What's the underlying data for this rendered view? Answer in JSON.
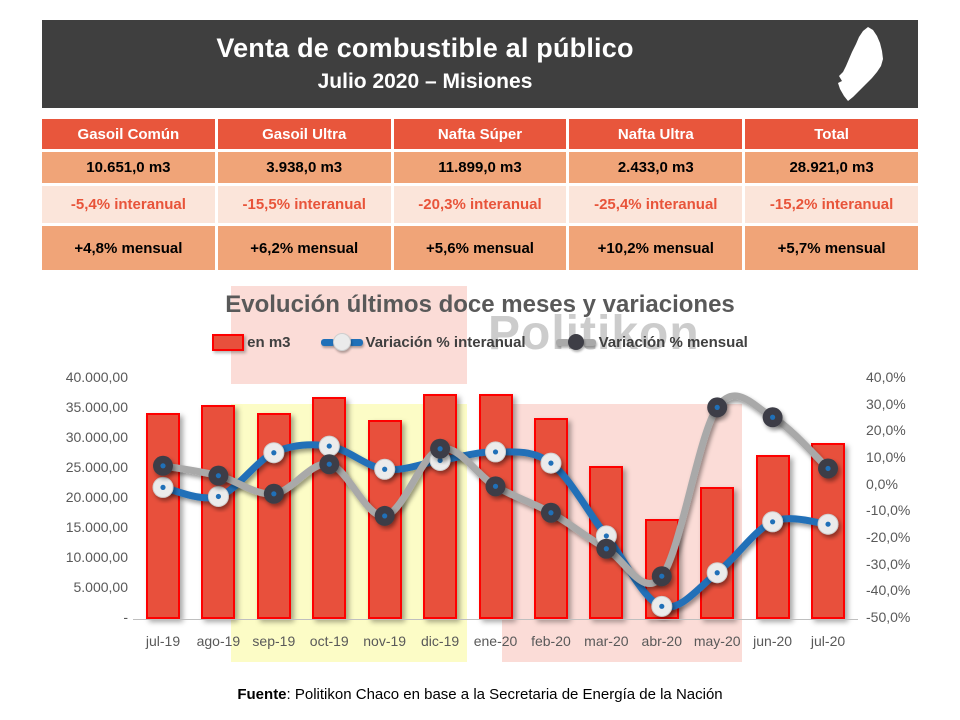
{
  "header": {
    "title": "Venta de combustible al público",
    "subtitle": "Julio 2020 – Misiones"
  },
  "table": {
    "columns": [
      "Gasoil Común",
      "Gasoil Ultra",
      "Nafta Súper",
      "Nafta Ultra",
      "Total"
    ],
    "volumes": [
      "10.651,0 m3",
      "3.938,0 m3",
      "11.899,0 m3",
      "2.433,0 m3",
      "28.921,0 m3"
    ],
    "interanual": [
      "-5,4% interanual",
      "-15,5% interanual",
      "-20,3% interanual",
      "-25,4% interanual",
      "-15,2% interanual"
    ],
    "mensual": [
      "+4,8% mensual",
      "+6,2% mensual",
      "+5,6% mensual",
      "+10,2% mensual",
      "+5,7% mensual"
    ]
  },
  "chart_section": {
    "title": "Evolución últimos doce meses y variaciones",
    "watermark": "Politikon",
    "legend": {
      "bars": "en m3",
      "interanual": "Variación % interanual",
      "mensual": "Variación % mensual"
    }
  },
  "chart_data": {
    "type": "bar",
    "combo": "bars (left axis, m3) + two smoothed marker lines (right axis, %)",
    "categories": [
      "jul-19",
      "ago-19",
      "sep-19",
      "oct-19",
      "nov-19",
      "dic-19",
      "ene-20",
      "feb-20",
      "mar-20",
      "abr-20",
      "may-20",
      "jun-20",
      "jul-20"
    ],
    "series": [
      {
        "name": "en m3",
        "type": "bar",
        "axis": "left",
        "values": [
          34000,
          35300,
          34000,
          36700,
          32800,
          37200,
          37200,
          33100,
          25100,
          16400,
          21600,
          27000,
          28921
        ]
      },
      {
        "name": "Variación % interanual",
        "type": "line",
        "axis": "right",
        "values": [
          -1.4,
          -4.8,
          11.6,
          14.1,
          5.4,
          8.7,
          11.9,
          7.7,
          -19.6,
          -46.0,
          -33.4,
          -14.3,
          -15.2
        ]
      },
      {
        "name": "Variación % mensual",
        "type": "line",
        "axis": "right",
        "values": [
          6.7,
          3.0,
          -3.8,
          7.3,
          -12.1,
          13.1,
          -1.0,
          -10.9,
          -24.4,
          -34.7,
          28.6,
          24.9,
          5.7
        ]
      }
    ],
    "left_axis": {
      "min": 0,
      "max": 40000,
      "ticks": [
        "40.000,00",
        "35.000,00",
        "30.000,00",
        "25.000,00",
        "20.000,00",
        "15.000,00",
        "10.000,00",
        "5.000,00",
        "-"
      ]
    },
    "right_axis": {
      "min": -50,
      "max": 40,
      "ticks": [
        "40,0%",
        "30,0%",
        "20,0%",
        "10,0%",
        "0,0%",
        "-10,0%",
        "-20,0%",
        "-30,0%",
        "-40,0%",
        "-50,0%"
      ]
    },
    "grid": false,
    "legend_position": "top",
    "highlights": [
      {
        "color_name": "yellow",
        "months": "sep-19 a dic-19"
      },
      {
        "color_name": "pink",
        "months": "ene-20 a may-20"
      }
    ]
  },
  "footer": {
    "bold": "Fuente",
    "rest": ": Politikon Chaco en base a la Secretaria de Energía de la Nación"
  },
  "colors": {
    "header_bg": "#3F3F3F",
    "table_header_bg": "#E8563C",
    "table_row_bg": "#F0A478",
    "table_pink_bg": "#FBE5DA",
    "red_text": "#E8543A",
    "bar_fill": "#E8503C",
    "bar_border": "#FE0000",
    "line_blue": "#2070B8",
    "line_gray": "#A9A9A9",
    "marker_white": "#EBEBEB",
    "marker_dark": "#3E3E46",
    "band_yellow": "#FCFCC6",
    "band_pink": "#FBDCD7",
    "axis_text": "#595959"
  }
}
